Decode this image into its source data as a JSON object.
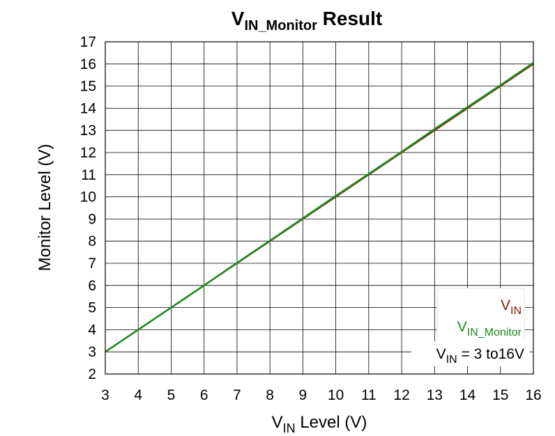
{
  "chart_data": {
    "type": "line",
    "title": {
      "main": "V",
      "sub": "IN_Monitor",
      "rest": " Result"
    },
    "xlabel": {
      "main": "V",
      "sub": "IN",
      "rest": " Level (V)"
    },
    "ylabel": "Monitor Level (V)",
    "xlim": [
      3,
      16
    ],
    "ylim": [
      2,
      17
    ],
    "xticks": [
      3,
      4,
      5,
      6,
      7,
      8,
      9,
      10,
      11,
      12,
      13,
      14,
      15,
      16
    ],
    "yticks": [
      2,
      3,
      4,
      5,
      6,
      7,
      8,
      9,
      10,
      11,
      12,
      13,
      14,
      15,
      16,
      17
    ],
    "grid": true,
    "legend_position": "bottom-right",
    "series": [
      {
        "name": {
          "main": "V",
          "sub": "IN"
        },
        "color": "#8B1A00",
        "x": [
          3,
          4,
          5,
          6,
          7,
          8,
          9,
          10,
          11,
          12,
          13,
          14,
          15,
          16
        ],
        "y": [
          3,
          4,
          5,
          6,
          7,
          8,
          9,
          10,
          11,
          12,
          13,
          14,
          15,
          16
        ]
      },
      {
        "name": {
          "main": "V",
          "sub": "IN_Monitor"
        },
        "color": "#1E8A1E",
        "x": [
          3,
          4,
          5,
          6,
          7,
          8,
          9,
          10,
          11,
          12,
          13,
          14,
          15,
          16
        ],
        "y": [
          3.0,
          4.0,
          5.0,
          6.0,
          7.02,
          8.02,
          9.03,
          10.04,
          11.03,
          12.03,
          13.06,
          14.05,
          15.04,
          16.05
        ]
      }
    ],
    "annotation": {
      "main": "V",
      "sub": "IN",
      "rest": " = 3 to16V"
    }
  }
}
